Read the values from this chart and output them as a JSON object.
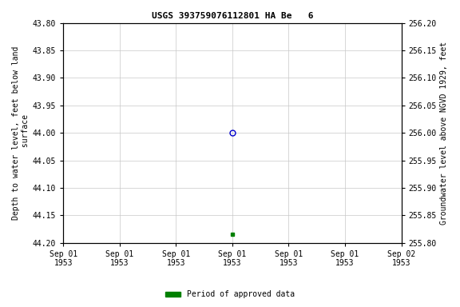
{
  "title": "USGS 393759076112801 HA Be   6",
  "ylabel_left": "Depth to water level, feet below land\n surface",
  "ylabel_right": "Groundwater level above NGVD 1929, feet",
  "ylim_left": [
    44.2,
    43.8
  ],
  "ylim_right": [
    255.8,
    256.2
  ],
  "yticks_left": [
    43.8,
    43.85,
    43.9,
    43.95,
    44.0,
    44.05,
    44.1,
    44.15,
    44.2
  ],
  "yticks_right": [
    256.2,
    256.15,
    256.1,
    256.05,
    256.0,
    255.95,
    255.9,
    255.85,
    255.8
  ],
  "data_points": [
    {
      "x_hour": 12.0,
      "value": 44.0,
      "marker": "o",
      "color": "#0000cc",
      "filled": false,
      "markersize": 5
    },
    {
      "x_hour": 12.0,
      "value": 44.185,
      "marker": "s",
      "color": "#008000",
      "filled": true,
      "markersize": 3
    }
  ],
  "xlim": [
    0,
    24
  ],
  "xtick_positions": [
    0,
    4,
    8,
    12,
    16,
    20,
    24
  ],
  "xtick_labels": [
    "Sep 01\n1953",
    "Sep 01\n1953",
    "Sep 01\n1953",
    "Sep 01\n1953",
    "Sep 01\n1953",
    "Sep 01\n1953",
    "Sep 02\n1953"
  ],
  "grid_color": "#c8c8c8",
  "background_color": "#ffffff",
  "legend_label": "Period of approved data",
  "legend_color": "#008000",
  "title_fontsize": 8,
  "label_fontsize": 7,
  "tick_fontsize": 7
}
